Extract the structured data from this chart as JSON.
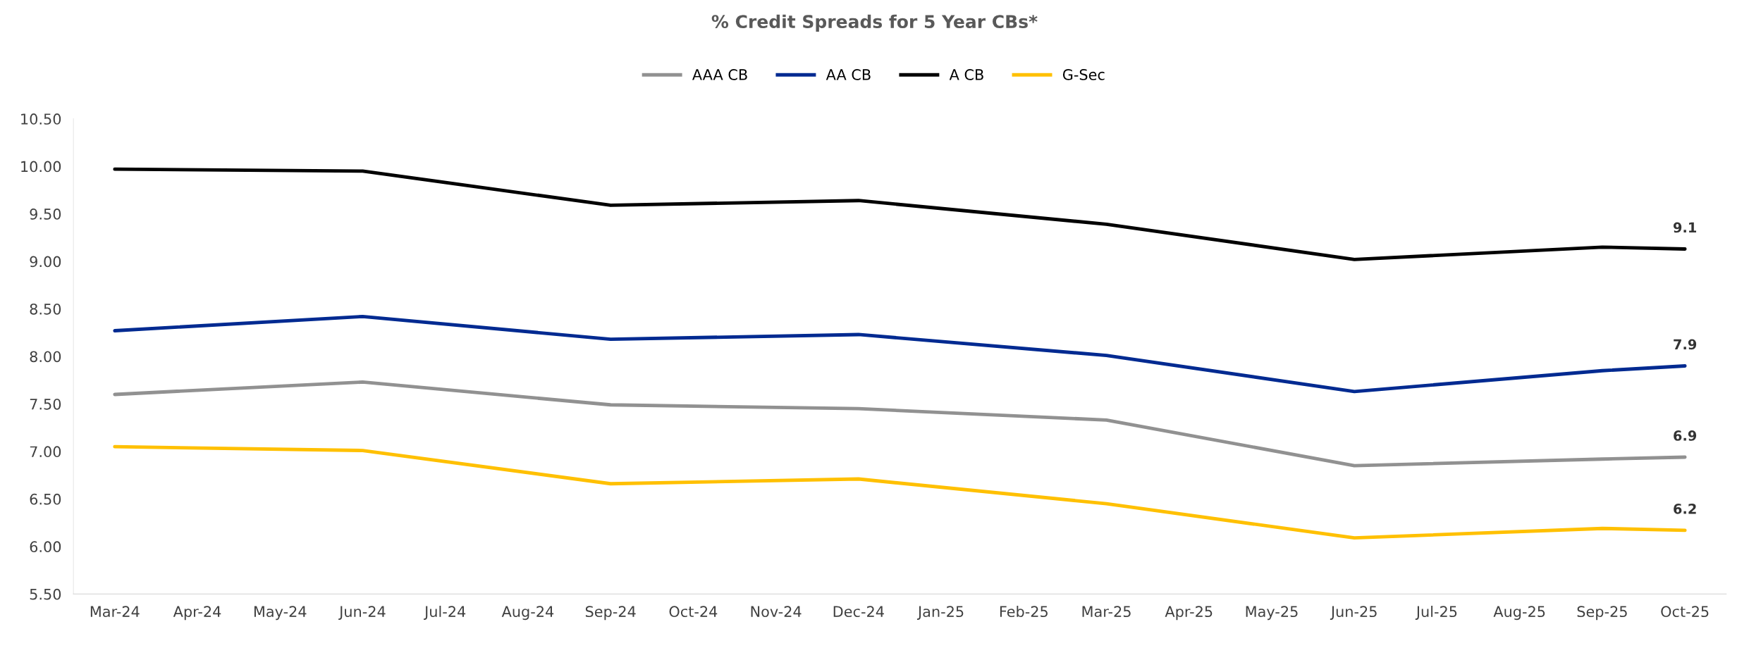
{
  "chart_data": {
    "type": "line",
    "title": "% Credit Spreads for 5 Year CBs*",
    "categories": [
      "Mar-24",
      "Apr-24",
      "May-24",
      "Jun-24",
      "Jul-24",
      "Aug-24",
      "Sep-24",
      "Oct-24",
      "Nov-24",
      "Dec-24",
      "Jan-25",
      "Feb-25",
      "Mar-25",
      "Apr-25",
      "May-25",
      "Jun-25",
      "Jul-25",
      "Aug-25",
      "Sep-25",
      "Oct-25"
    ],
    "series": [
      {
        "name": "AAA CB",
        "color": "#919191",
        "values": [
          7.6,
          null,
          null,
          7.73,
          null,
          null,
          7.49,
          null,
          null,
          7.45,
          null,
          null,
          7.33,
          null,
          null,
          6.85,
          null,
          null,
          6.92,
          6.94
        ],
        "value_labels": [
          null,
          null,
          null,
          null,
          null,
          null,
          null,
          null,
          null,
          null,
          null,
          null,
          null,
          null,
          null,
          null,
          null,
          null,
          null,
          "6.9"
        ]
      },
      {
        "name": "AA CB",
        "color": "#002a91",
        "values": [
          8.27,
          null,
          null,
          8.42,
          null,
          null,
          8.18,
          null,
          null,
          8.23,
          null,
          null,
          8.01,
          null,
          null,
          7.63,
          null,
          null,
          7.85,
          7.9
        ],
        "value_labels": [
          null,
          null,
          null,
          null,
          null,
          null,
          null,
          null,
          null,
          null,
          null,
          null,
          null,
          null,
          null,
          null,
          null,
          null,
          null,
          "7.9"
        ]
      },
      {
        "name": "A CB",
        "color": "#000000",
        "values": [
          9.97,
          null,
          null,
          9.95,
          null,
          null,
          9.59,
          null,
          null,
          9.64,
          null,
          null,
          9.39,
          null,
          null,
          9.02,
          null,
          null,
          9.15,
          9.13
        ],
        "value_labels": [
          null,
          null,
          null,
          null,
          null,
          null,
          null,
          null,
          null,
          null,
          null,
          null,
          null,
          null,
          null,
          null,
          null,
          null,
          null,
          "9.1"
        ]
      },
      {
        "name": "G-Sec",
        "color": "#ffc000",
        "values": [
          7.05,
          null,
          null,
          7.01,
          null,
          null,
          6.66,
          null,
          null,
          6.71,
          null,
          null,
          6.45,
          null,
          null,
          6.09,
          null,
          null,
          6.19,
          6.17
        ],
        "value_labels": [
          null,
          null,
          null,
          null,
          null,
          null,
          null,
          null,
          null,
          null,
          null,
          null,
          null,
          null,
          null,
          null,
          null,
          null,
          null,
          "6.2"
        ]
      }
    ],
    "ylim": [
      5.5,
      10.5
    ],
    "yticks": [
      {
        "value": 5.5,
        "label": "5.50"
      },
      {
        "value": 6.0,
        "label": "6.00"
      },
      {
        "value": 6.5,
        "label": "6.50"
      },
      {
        "value": 7.0,
        "label": "7.00"
      },
      {
        "value": 7.5,
        "label": "7.50"
      },
      {
        "value": 8.0,
        "label": "8.00"
      },
      {
        "value": 8.5,
        "label": "8.50"
      },
      {
        "value": 9.0,
        "label": "9.00"
      },
      {
        "value": 9.5,
        "label": "9.50"
      },
      {
        "value": 10.0,
        "label": "10.00"
      },
      {
        "value": 10.5,
        "label": "10.50"
      }
    ],
    "grid": false,
    "legend": "top",
    "marker": "none",
    "line_style": "solid"
  }
}
